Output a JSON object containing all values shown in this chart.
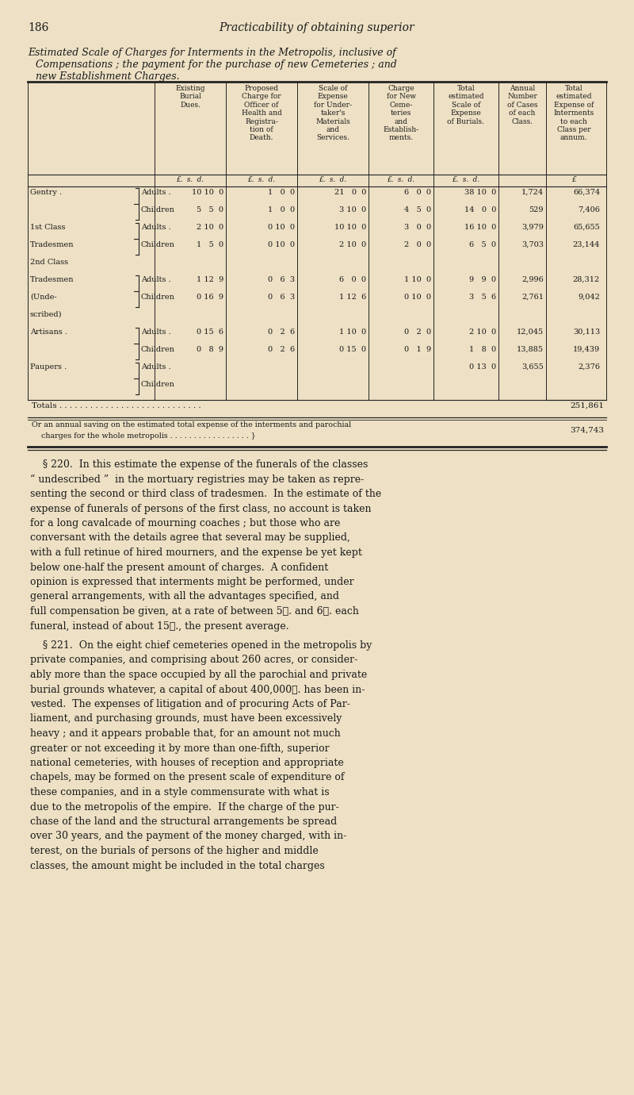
{
  "bg_color": "#ede0c4",
  "text_color": "#1a1a1a",
  "page_number": "186",
  "header_italic": "Practicability of obtaining superior",
  "title_lines": [
    "Estimated Scale of Charges for Interments in the Metropolis, inclusive of",
    "    Compensations ; the payment for the purchase of new Cemeteries ; and",
    "    new Establishment Charges."
  ],
  "col_header_texts": [
    "Existing\nBurial\nDues.",
    "Proposed\nCharge for\nOfficer of\nHealth and\nRegistra-\ntion of\nDeath.",
    "Scale of\nExpense\nfor Under-\ntaker's\nMaterials\nand\nServices.",
    "Charge\nfor New\nCeme-\nteries\nand\nEstablish-\nments.",
    "Total\nestimated\nScale of\nExpense\nof Burials.",
    "Annual\nNumber\nof Cases\nof each\nClass.",
    "Total\nestimated\nExpense of\nInterments\nto each\nClass per\nannum."
  ],
  "currency_texts": [
    "£.  s.  d.",
    "£.  s.  d.",
    "£.  s.  d.",
    "£.  s.  d.",
    "£.  s.  d.",
    "",
    "£"
  ],
  "row_data": [
    [
      "Gentry .",
      "Adults .",
      "10 10  0",
      "1   0  0",
      "21   0  0",
      "6   0  0",
      "38 10  0",
      "1,724",
      "66,374"
    ],
    [
      "",
      "Children",
      "5   5  0",
      "1   0  0",
      "3 10  0",
      "4   5  0",
      "14   0  0",
      "529",
      "7,406"
    ],
    [
      "1st Class",
      "Adults .",
      "2 10  0",
      "0 10  0",
      "10 10  0",
      "3   0  0",
      "16 10  0",
      "3,979",
      "65,655"
    ],
    [
      "Tradesmen",
      "Children",
      "1   5  0",
      "0 10  0",
      "2 10  0",
      "2   0  0",
      "6   5  0",
      "3,703",
      "23,144"
    ],
    [
      "2nd Class",
      "",
      "",
      "",
      "",
      "",
      "",
      "",
      ""
    ],
    [
      "Tradesmen",
      "Adults .",
      "1 12  9",
      "0   6  3",
      "6   0  0",
      "1 10  0",
      "9   9  0",
      "2,996",
      "28,312"
    ],
    [
      "(Unde-",
      "Children",
      "0 16  9",
      "0   6  3",
      "1 12  6",
      "0 10  0",
      "3   5  6",
      "2,761",
      "9,042"
    ],
    [
      "scribed)",
      "",
      "",
      "",
      "",
      "",
      "",
      "",
      ""
    ],
    [
      "Artisans .",
      "Adults .",
      "0 15  6",
      "0   2  6",
      "1 10  0",
      "0   2  0",
      "2 10  0",
      "12,045",
      "30,113"
    ],
    [
      "",
      "Children",
      "0   8  9",
      "0   2  6",
      "0 15  0",
      "0   1  9",
      "1   8  0",
      "13,885",
      "19,439"
    ],
    [
      "Paupers .",
      "Adults .",
      "",
      "",
      "",
      "",
      "0 13  0",
      "3,655",
      "2,376"
    ],
    [
      "",
      "Children",
      "",
      "",
      "",
      "",
      "",
      "",
      ""
    ]
  ],
  "totals_dots": "Totals . . . . . . . . . . . . . . . . . . . . . . . . . . . .",
  "totals_value": "251,861",
  "saving_line1": "Or an annual saving on the estimated total expense of the interments and parochial",
  "saving_line2": "    charges for the whole metropolis . . . . . . . . . . . . . . . . . }",
  "saving_value": "374,743",
  "para220_lines": [
    "    § 220.  In this estimate the expense of the funerals of the classes",
    "“ undescribed ”  in the mortuary registries may be taken as repre-",
    "senting the second or third class of tradesmen.  In the estimate of the",
    "expense of funerals of persons of the first class, no account is taken",
    "for a long cavalcade of mourning coaches ; but those who are",
    "conversant with the details agree that several may be supplied,",
    "with a full retinue of hired mourners, and the expense be yet kept",
    "below one-half the present amount of charges.  A confident",
    "opinion is expressed that interments might be performed, under",
    "general arrangements, with all the advantages specified, and",
    "full compensation be given, at a rate of between 5ℓ. and 6ℓ. each",
    "funeral, instead of about 15ℓ., the present average."
  ],
  "para221_lines": [
    "    § 221.  On the eight chief cemeteries opened in the metropolis by",
    "private companies, and comprising about 260 acres, or consider-",
    "ably more than the space occupied by all the parochial and private",
    "burial grounds whatever, a capital of about 400,000ℓ. has been in-",
    "vested.  The expenses of litigation and of procuring Acts of Par-",
    "liament, and purchasing grounds, must have been excessively",
    "heavy ; and it appears probable that, for an amount not much",
    "greater or not exceeding it by more than one-fifth, superior",
    "national cemeteries, with houses of reception and appropriate",
    "chapels, may be formed on the present scale of expenditure of",
    "these companies, and in a style commensurate with what is",
    "due to the metropolis of the empire.  If the charge of the pur-",
    "chase of the land and the structural arrangements be spread",
    "over 30 years, and the payment of the money charged, with in-",
    "terest, on the burials of persons of the higher and middle",
    "classes, the amount might be included in the total charges"
  ]
}
